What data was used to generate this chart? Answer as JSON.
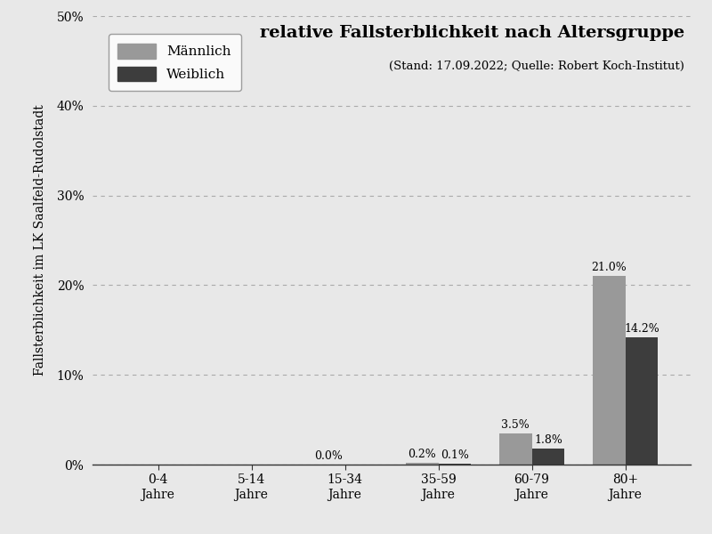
{
  "categories": [
    "0-4\nJahre",
    "5-14\nJahre",
    "15-34\nJahre",
    "35-59\nJahre",
    "60-79\nJahre",
    "80+\nJahre"
  ],
  "maennlich": [
    0.0,
    0.0,
    0.0,
    0.2,
    3.5,
    21.0
  ],
  "weiblich": [
    0.0,
    0.0,
    0.0,
    0.1,
    1.8,
    14.2
  ],
  "maennlich_labels": [
    "",
    "",
    "0.0%",
    "0.2%",
    "3.5%",
    "21.0%"
  ],
  "weiblich_labels": [
    "",
    "",
    "",
    "0.1%",
    "1.8%",
    "14.2%"
  ],
  "color_maennlich": "#999999",
  "color_weiblich": "#3d3d3d",
  "title": "relative Fallsterblichkeit nach Altersgruppe",
  "subtitle": "(Stand: 17.09.2022; Quelle: Robert Koch-Institut)",
  "ylabel": "Fallsterblichkeit im LK Saalfeld-Rudolstadt",
  "ylim": [
    0,
    50
  ],
  "yticks": [
    0,
    10,
    20,
    30,
    40,
    50
  ],
  "yticklabels": [
    "0%",
    "10%",
    "20%",
    "30%",
    "40%",
    "50%"
  ],
  "fig_facecolor": "#e8e8e8",
  "ax_facecolor": "#e8e8e8",
  "legend_maennlich": "Männlich",
  "legend_weiblich": "Weiblich",
  "bar_width": 0.35,
  "title_fontsize": 14,
  "subtitle_fontsize": 9.5,
  "ylabel_fontsize": 10,
  "tick_fontsize": 10,
  "label_fontsize": 9
}
